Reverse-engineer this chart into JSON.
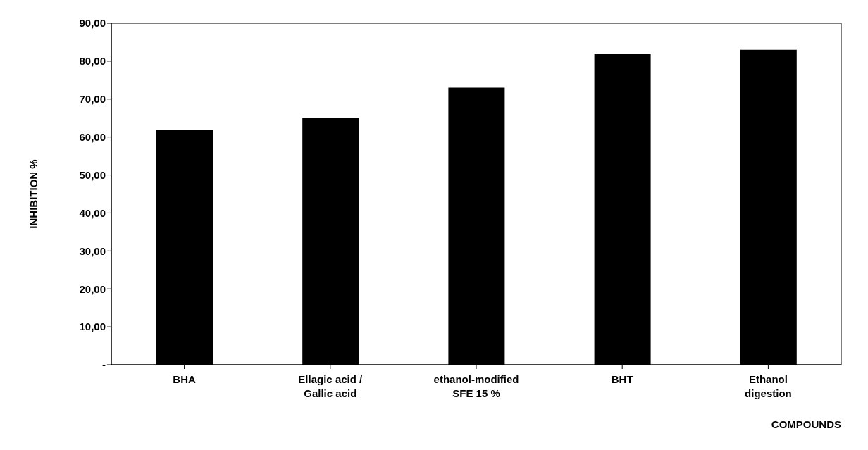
{
  "chart_data": {
    "type": "bar",
    "xlabel": "COMPOUNDS",
    "ylabel": "INHIBITION %",
    "categories": [
      "BHA",
      "Ellagic acid / Gallic acid",
      "ethanol-modified SFE 15 %",
      "BHT",
      "Ethanol digestion"
    ],
    "values": [
      62,
      65,
      73,
      82,
      83
    ],
    "color": "#000000",
    "ylim": [
      0,
      90
    ],
    "yticks": [
      {
        "value": 0,
        "label": "-"
      },
      {
        "value": 10,
        "label": "10,00"
      },
      {
        "value": 20,
        "label": "20,00"
      },
      {
        "value": 30,
        "label": "30,00"
      },
      {
        "value": 40,
        "label": "40,00"
      },
      {
        "value": 50,
        "label": "50,00"
      },
      {
        "value": 60,
        "label": "60,00"
      },
      {
        "value": 70,
        "label": "70,00"
      },
      {
        "value": 80,
        "label": "80,00"
      },
      {
        "value": 90,
        "label": "90,00"
      }
    ],
    "grid": false
  }
}
